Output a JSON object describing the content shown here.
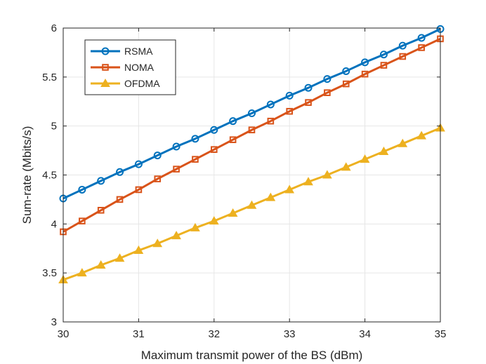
{
  "chart_data": {
    "type": "line",
    "title": "",
    "xlabel": "Maximum transmit power of the BS (dBm)",
    "ylabel": "Sum-rate (Mbits/s)",
    "xlim": [
      30,
      35
    ],
    "ylim": [
      3,
      6
    ],
    "xticks": [
      "30",
      "31",
      "32",
      "33",
      "34",
      "35"
    ],
    "yticks": [
      "3",
      "3.5",
      "4",
      "4.5",
      "5",
      "5.5",
      "6"
    ],
    "grid": true,
    "legend_position": "top-left",
    "x": [
      30,
      30.25,
      30.5,
      30.75,
      31,
      31.25,
      31.5,
      31.75,
      32,
      32.25,
      32.5,
      32.75,
      33,
      33.25,
      33.5,
      33.75,
      34,
      34.25,
      34.5,
      34.75,
      35
    ],
    "series": [
      {
        "name": "RSMA",
        "color": "#0072BD",
        "marker": "circle",
        "values": [
          4.26,
          4.35,
          4.44,
          4.53,
          4.61,
          4.7,
          4.79,
          4.87,
          4.96,
          5.05,
          5.13,
          5.22,
          5.31,
          5.39,
          5.48,
          5.56,
          5.65,
          5.73,
          5.82,
          5.9,
          5.99
        ]
      },
      {
        "name": "NOMA",
        "color": "#D95319",
        "marker": "square",
        "values": [
          3.92,
          4.03,
          4.14,
          4.25,
          4.35,
          4.46,
          4.56,
          4.66,
          4.76,
          4.86,
          4.96,
          5.05,
          5.15,
          5.24,
          5.34,
          5.43,
          5.53,
          5.62,
          5.71,
          5.8,
          5.89
        ]
      },
      {
        "name": "OFDMA",
        "color": "#EDB120",
        "marker": "triangle",
        "values": [
          3.43,
          3.5,
          3.58,
          3.65,
          3.73,
          3.8,
          3.88,
          3.96,
          4.03,
          4.11,
          4.19,
          4.27,
          4.35,
          4.43,
          4.5,
          4.58,
          4.66,
          4.74,
          4.82,
          4.9,
          4.98
        ]
      }
    ]
  }
}
